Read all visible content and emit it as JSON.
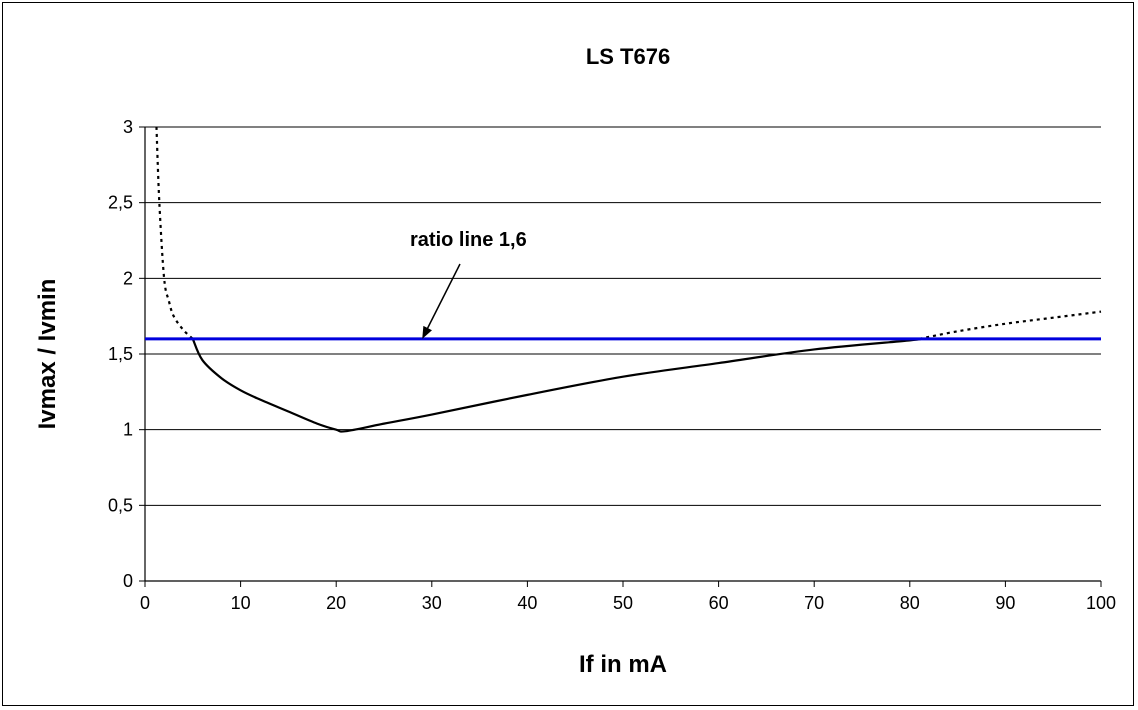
{
  "chart_data": {
    "type": "line",
    "title": "LS T676",
    "xlabel": "If in mA",
    "ylabel": "Ivmax / Ivmin",
    "xlim": [
      0,
      100
    ],
    "ylim": [
      0,
      3
    ],
    "x_ticks": [
      "0",
      "10",
      "20",
      "30",
      "40",
      "50",
      "60",
      "70",
      "80",
      "90",
      "100"
    ],
    "y_ticks": [
      "0",
      "0,5",
      "1",
      "1,5",
      "2",
      "2,5",
      "3"
    ],
    "grid": "horizontal",
    "series": [
      {
        "style": "dotted",
        "color": "#000000",
        "x": [
          1.2,
          1.5,
          2,
          2.5,
          3,
          4,
          5
        ],
        "y": [
          3.0,
          2.5,
          2.0,
          1.85,
          1.75,
          1.66,
          1.6
        ]
      },
      {
        "style": "solid",
        "color": "#000000",
        "x": [
          5,
          6,
          8,
          10,
          12,
          15,
          18,
          20,
          21,
          25,
          30,
          40,
          50,
          60,
          70,
          80,
          81
        ],
        "y": [
          1.6,
          1.46,
          1.34,
          1.26,
          1.2,
          1.12,
          1.04,
          1.0,
          0.99,
          1.04,
          1.1,
          1.23,
          1.35,
          1.44,
          1.53,
          1.59,
          1.6
        ]
      },
      {
        "style": "dotted",
        "color": "#000000",
        "x": [
          81,
          85,
          90,
          95,
          100
        ],
        "y": [
          1.6,
          1.65,
          1.7,
          1.74,
          1.78
        ]
      },
      {
        "style": "solid",
        "color": "#0000dd",
        "x": [
          0,
          100
        ],
        "y": [
          1.6,
          1.6
        ]
      }
    ],
    "annotations": [
      {
        "text": "ratio line 1,6",
        "arrow_to": [
          29,
          1.6
        ]
      }
    ]
  }
}
